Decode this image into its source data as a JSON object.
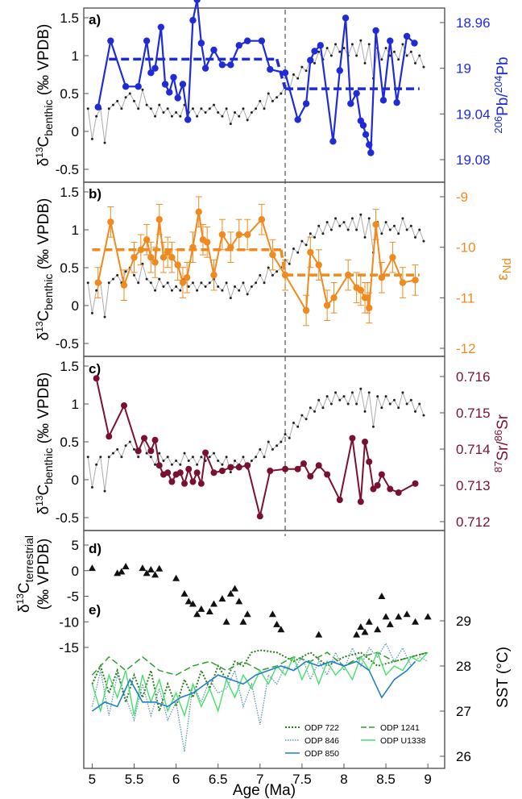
{
  "figure": {
    "xaxis": {
      "label": "Age (Ma)",
      "ticks": [
        "5",
        "5.5",
        "6",
        "6.5",
        "7",
        "7.5",
        "8",
        "8.5",
        "9"
      ],
      "range": [
        4.9,
        9.2
      ]
    },
    "divider_age": 7.3,
    "colors": {
      "benthic": "#444444",
      "pb": "#1f2bd6",
      "nd": "#f08a1f",
      "sr": "#7a1030",
      "sst": [
        "#2b7d1a",
        "#2e9e2e",
        "#5b9ab0",
        "#47e06a",
        "#1f7ec4"
      ]
    }
  },
  "benthic": {
    "x": [
      4.95,
      5.0,
      5.05,
      5.1,
      5.15,
      5.2,
      5.25,
      5.3,
      5.35,
      5.4,
      5.45,
      5.5,
      5.55,
      5.6,
      5.65,
      5.7,
      5.75,
      5.8,
      5.85,
      5.9,
      5.95,
      6.0,
      6.05,
      6.1,
      6.15,
      6.2,
      6.25,
      6.3,
      6.35,
      6.4,
      6.45,
      6.5,
      6.55,
      6.6,
      6.65,
      6.7,
      6.75,
      6.8,
      6.85,
      6.9,
      6.95,
      7.0,
      7.05,
      7.1,
      7.15,
      7.2,
      7.25,
      7.3,
      7.35,
      7.4,
      7.45,
      7.5,
      7.55,
      7.6,
      7.65,
      7.7,
      7.75,
      7.8,
      7.85,
      7.9,
      7.95,
      8.0,
      8.05,
      8.1,
      8.15,
      8.2,
      8.25,
      8.3,
      8.35,
      8.4,
      8.45,
      8.5,
      8.55,
      8.6,
      8.65,
      8.7,
      8.75,
      8.8,
      8.85,
      8.9,
      8.95
    ],
    "y": [
      0.3,
      -0.1,
      0.2,
      0.3,
      -0.15,
      0.3,
      0.35,
      0.4,
      0.3,
      0.45,
      0.5,
      0.4,
      0.3,
      0.55,
      0.35,
      0.3,
      0.2,
      0.35,
      0.25,
      0.3,
      0.2,
      0.25,
      0.2,
      0.35,
      0.25,
      0.3,
      0.2,
      0.3,
      0.25,
      0.3,
      0.35,
      0.25,
      0.2,
      0.3,
      0.1,
      0.25,
      0.2,
      0.3,
      0.15,
      0.25,
      0.3,
      0.4,
      0.3,
      0.5,
      0.4,
      0.45,
      0.5,
      0.6,
      0.55,
      0.75,
      0.7,
      0.85,
      0.8,
      0.95,
      0.9,
      1.05,
      0.95,
      1.1,
      1.0,
      1.15,
      1.05,
      1.1,
      1.0,
      1.15,
      1.0,
      1.2,
      0.9,
      1.15,
      0.7,
      1.1,
      0.95,
      1.1,
      1.0,
      1.05,
      0.95,
      1.15,
      1.0,
      1.05,
      0.9,
      1.0,
      0.85
    ]
  },
  "panel_a": {
    "letter": "a)",
    "ylabel_left": "δ13Cbenthic (‰ VPDB)",
    "ylabel_right": "206Pb/204Pb",
    "left_ticks": [
      "1.5",
      "1",
      "0.5",
      "0",
      "-0.5"
    ],
    "right_ticks": [
      "18.96",
      "19",
      "19.04",
      "19.08"
    ],
    "pb_x": [
      5.07,
      5.22,
      5.4,
      5.55,
      5.65,
      5.7,
      5.75,
      5.82,
      5.87,
      5.92,
      5.97,
      6.02,
      6.08,
      6.14,
      6.2,
      6.25,
      6.3,
      6.35,
      6.45,
      6.55,
      6.65,
      6.75,
      6.85,
      7.02,
      7.12,
      7.3,
      7.45,
      7.55,
      7.6,
      7.65,
      7.72,
      7.87,
      7.95,
      8.02,
      8.08,
      8.15,
      8.2,
      8.23,
      8.26,
      8.3,
      8.32,
      8.38,
      8.47,
      8.55,
      8.63,
      8.75,
      8.84
    ],
    "pb_y": [
      19.034,
      18.976,
      19.016,
      19.016,
      18.976,
      19.004,
      19.0,
      18.964,
      19.014,
      19.021,
      19.008,
      19.026,
      19.014,
      19.045,
      18.958,
      18.94,
      18.978,
      19.0,
      18.984,
      18.997,
      18.997,
      18.98,
      18.976,
      18.976,
      19.001,
      19.004,
      19.045,
      19.031,
      18.993,
      18.985,
      18.98,
      19.064,
      19.002,
      18.956,
      19.031,
      19.022,
      19.046,
      19.05,
      19.058,
      19.067,
      19.074,
      18.967,
      19.028,
      18.976,
      19.03,
      18.972,
      18.978
    ],
    "pb_steps": [
      {
        "x": [
          5.2,
          7.2
        ],
        "y": [
          18.992,
          18.992
        ]
      },
      {
        "x": [
          7.2,
          7.3
        ],
        "y": [
          18.992,
          19.018
        ]
      },
      {
        "x": [
          7.3,
          8.9
        ],
        "y": [
          19.018,
          19.018
        ]
      }
    ]
  },
  "panel_b": {
    "letter": "b)",
    "ylabel_left": "δ13Cbenthic (‰ VPDB)",
    "ylabel_right": "εNd",
    "left_ticks": [
      "1.5",
      "1",
      "0.5",
      "0",
      "-0.5"
    ],
    "right_ticks": [
      "-9",
      "-10",
      "-11",
      "-12"
    ],
    "nd_x": [
      5.07,
      5.22,
      5.38,
      5.5,
      5.58,
      5.65,
      5.7,
      5.75,
      5.8,
      5.85,
      5.9,
      5.95,
      6.02,
      6.08,
      6.13,
      6.2,
      6.27,
      6.32,
      6.37,
      6.45,
      6.55,
      6.65,
      6.75,
      6.85,
      7.02,
      7.15,
      7.3,
      7.55,
      7.6,
      7.7,
      7.8,
      7.88,
      8.05,
      8.15,
      8.2,
      8.25,
      8.28,
      8.3,
      8.38,
      8.45,
      8.58,
      8.7,
      8.85
    ],
    "nd_y": [
      -10.7,
      -9.5,
      -10.75,
      -10.2,
      -10.05,
      -9.85,
      -10.2,
      -10.3,
      -9.45,
      -10.2,
      -10.1,
      -10.2,
      -10.35,
      -10.7,
      -10.6,
      -10.0,
      -9.3,
      -9.85,
      -9.9,
      -10.55,
      -9.75,
      -10.0,
      -9.75,
      -9.75,
      -9.45,
      -10.15,
      -10.55,
      -11.25,
      -10.1,
      -10.35,
      -11.15,
      -11.0,
      -10.55,
      -10.8,
      -10.85,
      -11.0,
      -11.0,
      -11.2,
      -9.55,
      -10.6,
      -10.2,
      -10.7,
      -10.65
    ],
    "nd_err": 0.3,
    "nd_steps": [
      {
        "x": [
          5.0,
          7.25
        ],
        "y": [
          -10.05,
          -10.05
        ]
      },
      {
        "x": [
          7.25,
          7.3
        ],
        "y": [
          -10.05,
          -10.55
        ]
      },
      {
        "x": [
          7.3,
          8.9
        ],
        "y": [
          -10.55,
          -10.55
        ]
      }
    ]
  },
  "panel_c": {
    "letter": "c)",
    "ylabel_left": "δ13Cbenthic (‰ VPDB)",
    "ylabel_right": "87Sr/86Sr",
    "left_ticks": [
      "1.5",
      "1",
      "0.5",
      "0",
      "-0.5"
    ],
    "right_ticks": [
      "0.716",
      "0.715",
      "0.714",
      "0.713",
      "0.712"
    ],
    "sr_x": [
      5.05,
      5.2,
      5.38,
      5.55,
      5.62,
      5.7,
      5.75,
      5.8,
      5.85,
      5.9,
      5.95,
      6.0,
      6.05,
      6.1,
      6.15,
      6.2,
      6.25,
      6.3,
      6.35,
      6.45,
      6.55,
      6.65,
      6.75,
      6.85,
      7.0,
      7.12,
      7.3,
      7.45,
      7.52,
      7.6,
      7.7,
      7.8,
      7.95,
      8.1,
      8.2,
      8.25,
      8.3,
      8.35,
      8.4,
      8.45,
      8.55,
      8.65,
      8.85
    ],
    "sr_y": [
      0.71595,
      0.71435,
      0.7152,
      0.71395,
      0.7143,
      0.71395,
      0.71425,
      0.71355,
      0.7133,
      0.71335,
      0.7131,
      0.7133,
      0.71335,
      0.71305,
      0.71345,
      0.7131,
      0.71335,
      0.71305,
      0.7139,
      0.71335,
      0.7134,
      0.7135,
      0.7135,
      0.71355,
      0.71215,
      0.7134,
      0.71345,
      0.71345,
      0.7136,
      0.71325,
      0.71355,
      0.7133,
      0.7126,
      0.7143,
      0.71255,
      0.7142,
      0.71365,
      0.7129,
      0.713,
      0.7133,
      0.7129,
      0.7128,
      0.71305
    ]
  },
  "panel_de": {
    "letter_d": "d)",
    "letter_e": "e)",
    "ylabel_left": "δ13Cterrestrial (‰ VPDB)",
    "ylabel_right": "SST (°C)",
    "left_ticks": [
      "5",
      "0",
      "-5",
      "-10",
      "-15"
    ],
    "right_ticks": [
      "29",
      "28",
      "27",
      "26"
    ],
    "terr_x": [
      5.0,
      5.3,
      5.35,
      5.4,
      5.6,
      5.65,
      5.7,
      5.75,
      5.8,
      6.0,
      6.1,
      6.15,
      6.2,
      6.25,
      6.3,
      6.4,
      6.45,
      6.55,
      6.6,
      6.65,
      6.7,
      6.75,
      6.8,
      6.85,
      7.15,
      7.2,
      7.25,
      7.7,
      8.15,
      8.2,
      8.25,
      8.3,
      8.4,
      8.45,
      8.5,
      8.55,
      8.65,
      8.75,
      8.85,
      9.0
    ],
    "terr_y": [
      0.5,
      -0.5,
      -0.2,
      0.8,
      0.5,
      -0.5,
      0.2,
      -0.8,
      0.4,
      -1.5,
      -4.5,
      -6.0,
      -6.5,
      -8.5,
      -7.5,
      -8.0,
      -6.5,
      -5.5,
      -10.0,
      -4.5,
      -3.5,
      -6.0,
      -10.0,
      -8.5,
      -8.5,
      -10.5,
      -11.5,
      -12.5,
      -12.5,
      -11.0,
      -12.0,
      -10.0,
      -11.5,
      -5.0,
      -9.0,
      -10.5,
      -9.0,
      -8.5,
      -10.0,
      -9.0
    ],
    "legend": [
      "ODP 722",
      "ODP 1241",
      "ODP 846",
      "ODP U1338",
      "ODP 850"
    ],
    "sst_series": [
      {
        "name": "ODP 722",
        "x": [
          5.0,
          5.1,
          5.2,
          5.3,
          5.4,
          5.5,
          5.6,
          5.7,
          5.8,
          5.9,
          6.0,
          6.1,
          6.2,
          6.3,
          6.4,
          6.5,
          6.6,
          6.7,
          6.8,
          6.9,
          7.0,
          7.2,
          7.4,
          7.6,
          7.8,
          8.0,
          8.2,
          8.4,
          8.6,
          8.8,
          9.0
        ],
        "y": [
          27.6,
          28.0,
          27.4,
          27.9,
          27.2,
          27.8,
          27.3,
          27.9,
          27.0,
          27.6,
          27.1,
          27.7,
          27.3,
          27.9,
          27.5,
          28.0,
          27.7,
          28.1,
          28.0,
          28.3,
          28.35,
          28.3,
          28.1,
          28.3,
          28.0,
          28.2,
          28.3,
          28.0,
          28.1,
          28.2,
          28.3
        ]
      },
      {
        "name": "ODP 1241",
        "x": [
          5.0,
          5.2,
          5.4,
          5.6,
          5.8,
          6.0,
          6.2,
          6.4,
          6.6,
          6.8,
          7.0,
          7.2,
          7.4,
          7.6,
          7.8,
          8.0,
          8.2,
          8.4,
          8.6,
          8.8,
          9.0
        ],
        "y": [
          27.8,
          28.2,
          27.9,
          28.2,
          27.9,
          27.8,
          28.0,
          28.1,
          27.9,
          28.1,
          27.9,
          28.0,
          28.2,
          28.1,
          28.3,
          28.0,
          28.2,
          28.3,
          28.1,
          28.2,
          28.3
        ]
      },
      {
        "name": "ODP 846",
        "x": [
          5.0,
          5.1,
          5.2,
          5.3,
          5.4,
          5.5,
          5.6,
          5.7,
          5.8,
          5.9,
          6.0,
          6.1,
          6.2,
          6.3,
          6.4,
          6.5,
          6.6,
          6.7,
          6.8,
          6.9,
          7.0,
          7.1,
          7.2,
          7.3,
          7.4,
          7.5,
          7.6,
          7.7,
          7.8,
          7.9,
          8.0,
          8.1,
          8.2,
          8.3,
          8.4,
          8.5,
          8.6,
          8.7,
          8.8,
          8.9,
          9.0
        ],
        "y": [
          27.1,
          27.9,
          26.9,
          27.8,
          27.3,
          26.8,
          27.6,
          26.9,
          27.5,
          26.8,
          27.2,
          26.1,
          27.6,
          27.2,
          27.7,
          27.4,
          27.5,
          27.9,
          27.1,
          27.6,
          26.7,
          27.8,
          27.6,
          28.0,
          27.9,
          28.2,
          27.7,
          28.1,
          27.8,
          28.3,
          27.9,
          28.4,
          28.0,
          28.4,
          28.2,
          28.5,
          28.1,
          28.4,
          28.0,
          28.2,
          28.1
        ]
      },
      {
        "name": "ODP U1338",
        "x": [
          5.0,
          5.1,
          5.2,
          5.3,
          5.4,
          5.5,
          5.6,
          5.7,
          5.8,
          5.9,
          6.0,
          6.1,
          6.2,
          6.3,
          6.4,
          6.5,
          6.6,
          6.7,
          6.8,
          6.9,
          7.0,
          7.1,
          7.2,
          7.3,
          7.4,
          7.5,
          7.6,
          7.7,
          7.8,
          7.9,
          8.0,
          8.1,
          8.2,
          8.3,
          8.4,
          8.5,
          8.6,
          8.7,
          8.8,
          8.9,
          9.0
        ],
        "y": [
          27.6,
          27.0,
          27.8,
          27.3,
          27.9,
          26.9,
          27.8,
          27.2,
          27.7,
          27.0,
          27.4,
          26.9,
          27.6,
          27.1,
          27.5,
          27.0,
          27.7,
          27.3,
          27.8,
          27.5,
          27.9,
          27.6,
          28.0,
          27.8,
          28.2,
          27.7,
          28.1,
          27.6,
          28.1,
          27.8,
          28.0,
          27.7,
          28.2,
          27.9,
          28.3,
          27.8,
          28.0,
          27.9,
          28.2,
          28.1,
          28.3
        ]
      },
      {
        "name": "ODP 850",
        "x": [
          5.0,
          5.15,
          5.3,
          5.45,
          5.6,
          5.75,
          5.9,
          6.05,
          6.2,
          6.35,
          6.5,
          6.65,
          6.8,
          6.95,
          7.1,
          7.25,
          7.4,
          7.55,
          7.7,
          7.85,
          8.0,
          8.15,
          8.3,
          8.45,
          8.6,
          8.75,
          8.85
        ],
        "y": [
          27.0,
          27.2,
          27.1,
          27.7,
          27.2,
          27.2,
          27.1,
          27.3,
          27.4,
          27.6,
          27.8,
          27.7,
          27.6,
          27.8,
          27.9,
          28.0,
          27.9,
          28.1,
          28.0,
          28.1,
          28.0,
          28.1,
          27.9,
          27.3,
          27.7,
          27.9,
          28.1
        ]
      }
    ]
  }
}
